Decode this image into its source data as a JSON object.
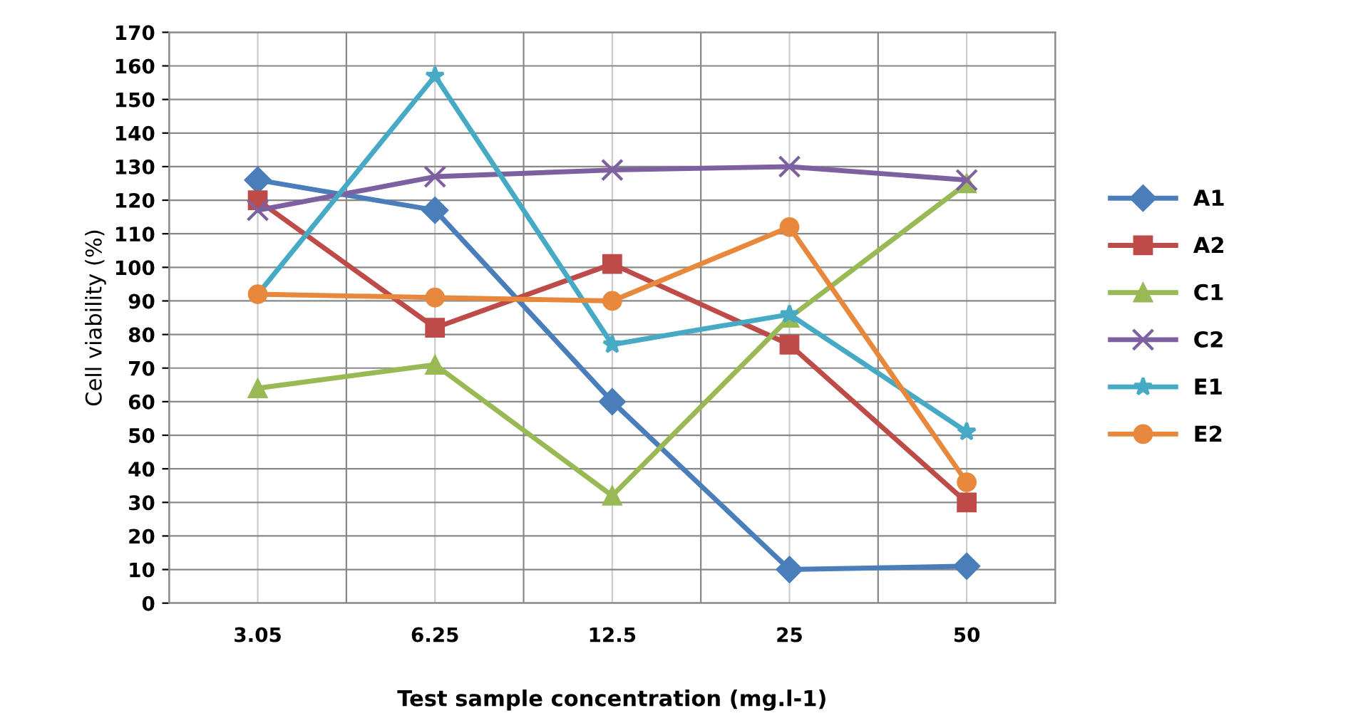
{
  "chart_data": {
    "type": "line",
    "xlabel": "Test sample concentration (mg.l-1)",
    "ylabel": "Cell viability (%)",
    "categories": [
      "3.05",
      "6.25",
      "12.5",
      "25",
      "50"
    ],
    "ylim": [
      0,
      170
    ],
    "yticks": [
      0,
      10,
      20,
      30,
      40,
      50,
      60,
      70,
      80,
      90,
      100,
      110,
      120,
      130,
      140,
      150,
      160,
      170
    ],
    "grid": true,
    "legend": "right",
    "line_style": "solid",
    "series": [
      {
        "name": "A1",
        "color": "#4a7ebb",
        "marker": "diamond",
        "values": [
          126,
          117,
          60,
          10,
          11
        ]
      },
      {
        "name": "A2",
        "color": "#be4b48",
        "marker": "square",
        "values": [
          120,
          82,
          101,
          77,
          30
        ]
      },
      {
        "name": "C1",
        "color": "#98b954",
        "marker": "triangle",
        "values": [
          64,
          71,
          32,
          85,
          125
        ]
      },
      {
        "name": "C2",
        "color": "#7d60a0",
        "marker": "cross",
        "values": [
          117,
          127,
          129,
          130,
          126
        ]
      },
      {
        "name": "E1",
        "color": "#46aac5",
        "marker": "star",
        "values": [
          92,
          157,
          77,
          86,
          51
        ]
      },
      {
        "name": "E2",
        "color": "#e8883c",
        "marker": "circle",
        "values": [
          92,
          91,
          90,
          112,
          36
        ]
      }
    ]
  }
}
